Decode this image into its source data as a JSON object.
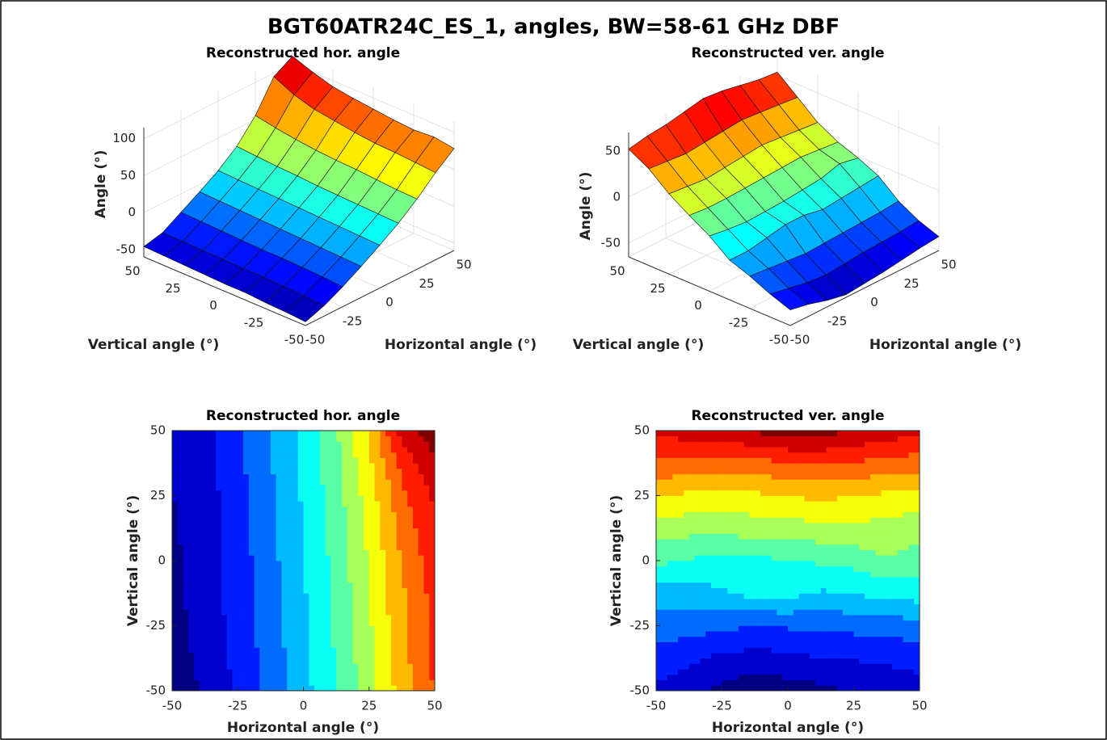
{
  "title": "BGT60ATR24C_ES_1, angles, BW=58-61 GHz DBF",
  "chart_data": [
    {
      "type": "surface",
      "title": "Reconstructed hor. angle",
      "x_label": "Horizontal angle (°)",
      "y_label": "Vertical angle (°)",
      "z_label": "Angle (°)",
      "x": [
        -50,
        -37.5,
        -25,
        -12.5,
        0,
        12.5,
        25,
        37.5,
        50
      ],
      "y": [
        -50,
        -37.5,
        -25,
        -12.5,
        0,
        12.5,
        25,
        37.5,
        50
      ],
      "z": [
        [
          -55,
          -46,
          -33,
          -18,
          -2,
          15,
          35,
          58,
          78
        ],
        [
          -53,
          -44,
          -31,
          -17,
          -1,
          16,
          36,
          60,
          82
        ],
        [
          -52,
          -43,
          -30,
          -16,
          0,
          17,
          38,
          62,
          80
        ],
        [
          -50,
          -42,
          -29,
          -15,
          1,
          18,
          40,
          63,
          82
        ],
        [
          -50,
          -42,
          -29,
          -14,
          2,
          19,
          41,
          66,
          85
        ],
        [
          -49,
          -41,
          -28,
          -13,
          3,
          21,
          43,
          70,
          88
        ],
        [
          -48,
          -41,
          -27,
          -12,
          4,
          22,
          46,
          74,
          92
        ],
        [
          -47,
          -40,
          -26,
          -11,
          5,
          24,
          50,
          82,
          100
        ],
        [
          -46,
          -40,
          -25,
          -10,
          6,
          26,
          55,
          95,
          110
        ]
      ],
      "xlim": [
        -50,
        50
      ],
      "ylim": [
        -50,
        50
      ],
      "zlim": [
        -60,
        115
      ],
      "xticks": [
        -50,
        -25,
        0,
        25,
        50
      ],
      "yticks": [
        -50,
        -25,
        0,
        25,
        50
      ],
      "zticks": [
        -50,
        0,
        50,
        100
      ],
      "colormap": "jet",
      "grid": true
    },
    {
      "type": "surface",
      "title": "Reconstructed ver. angle",
      "x_label": "Horizontal angle (°)",
      "y_label": "Vertical angle (°)",
      "z_label": "Angle (°)",
      "x": [
        -50,
        -37.5,
        -25,
        -12.5,
        0,
        12.5,
        25,
        37.5,
        50
      ],
      "y": [
        -50,
        -37.5,
        -25,
        -12.5,
        0,
        12.5,
        25,
        37.5,
        50
      ],
      "z": [
        [
          -48,
          -52,
          -58,
          -62,
          -60,
          -58,
          -55,
          -52,
          -50
        ],
        [
          -40,
          -44,
          -48,
          -50,
          -48,
          -46,
          -45,
          -44,
          -42
        ],
        [
          -30,
          -32,
          -34,
          -36,
          -35,
          -34,
          -33,
          -32,
          -30
        ],
        [
          -22,
          -22,
          -18,
          -14,
          -14,
          -18,
          -16,
          -14,
          -12
        ],
        [
          -5,
          -8,
          -10,
          -9,
          -8,
          -6,
          -4,
          2,
          -2
        ],
        [
          8,
          6,
          6,
          7,
          8,
          9,
          10,
          8,
          6
        ],
        [
          22,
          20,
          18,
          20,
          22,
          24,
          22,
          20,
          18
        ],
        [
          40,
          38,
          36,
          38,
          40,
          42,
          40,
          38,
          36
        ],
        [
          52,
          56,
          58,
          62,
          66,
          64,
          60,
          56,
          54
        ]
      ],
      "xlim": [
        -50,
        50
      ],
      "ylim": [
        -50,
        50
      ],
      "zlim": [
        -65,
        70
      ],
      "xticks": [
        -50,
        -25,
        0,
        25,
        50
      ],
      "yticks": [
        -50,
        -25,
        0,
        25,
        50
      ],
      "zticks": [
        -50,
        0,
        50
      ],
      "colormap": "jet",
      "grid": true
    },
    {
      "type": "contour",
      "title": "Reconstructed hor. angle",
      "x_label": "Horizontal angle (°)",
      "y_label": "Vertical angle (°)",
      "x": [
        -50,
        -37.5,
        -25,
        -12.5,
        0,
        12.5,
        25,
        37.5,
        50
      ],
      "y": [
        -50,
        -37.5,
        -25,
        -12.5,
        0,
        12.5,
        25,
        37.5,
        50
      ],
      "z": [
        [
          -55,
          -46,
          -33,
          -18,
          -2,
          15,
          35,
          58,
          78
        ],
        [
          -53,
          -44,
          -31,
          -17,
          -1,
          16,
          36,
          60,
          82
        ],
        [
          -52,
          -43,
          -30,
          -16,
          0,
          17,
          38,
          62,
          80
        ],
        [
          -50,
          -42,
          -29,
          -15,
          1,
          18,
          40,
          63,
          82
        ],
        [
          -50,
          -42,
          -29,
          -14,
          2,
          19,
          41,
          66,
          85
        ],
        [
          -49,
          -41,
          -28,
          -13,
          3,
          21,
          43,
          70,
          88
        ],
        [
          -48,
          -41,
          -27,
          -12,
          4,
          22,
          46,
          74,
          92
        ],
        [
          -47,
          -40,
          -26,
          -11,
          5,
          24,
          50,
          82,
          100
        ],
        [
          -46,
          -40,
          -25,
          -10,
          6,
          26,
          55,
          95,
          110
        ]
      ],
      "xlim": [
        -50,
        50
      ],
      "ylim": [
        -50,
        50
      ],
      "zlim": [
        -60,
        115
      ],
      "xticks": [
        -50,
        -25,
        0,
        25,
        50
      ],
      "yticks": [
        -50,
        -25,
        0,
        25,
        50
      ],
      "colormap": "jet"
    },
    {
      "type": "contour",
      "title": "Reconstructed ver. angle",
      "x_label": "Horizontal angle (°)",
      "y_label": "Vertical angle (°)",
      "x": [
        -50,
        -37.5,
        -25,
        -12.5,
        0,
        12.5,
        25,
        37.5,
        50
      ],
      "y": [
        -50,
        -37.5,
        -25,
        -12.5,
        0,
        12.5,
        25,
        37.5,
        50
      ],
      "z": [
        [
          -48,
          -52,
          -58,
          -62,
          -60,
          -58,
          -55,
          -52,
          -50
        ],
        [
          -40,
          -44,
          -48,
          -50,
          -48,
          -46,
          -45,
          -44,
          -42
        ],
        [
          -30,
          -32,
          -34,
          -36,
          -35,
          -34,
          -33,
          -32,
          -30
        ],
        [
          -22,
          -22,
          -18,
          -14,
          -14,
          -18,
          -16,
          -14,
          -12
        ],
        [
          -5,
          -8,
          -10,
          -9,
          -8,
          -6,
          -4,
          2,
          -2
        ],
        [
          8,
          6,
          6,
          7,
          8,
          9,
          10,
          8,
          6
        ],
        [
          22,
          20,
          18,
          20,
          22,
          24,
          22,
          20,
          18
        ],
        [
          40,
          38,
          36,
          38,
          40,
          42,
          40,
          38,
          36
        ],
        [
          52,
          56,
          58,
          62,
          66,
          64,
          60,
          56,
          54
        ]
      ],
      "xlim": [
        -50,
        50
      ],
      "ylim": [
        -50,
        50
      ],
      "zlim": [
        -65,
        70
      ],
      "xticks": [
        -50,
        -25,
        0,
        25,
        50
      ],
      "yticks": [
        -50,
        -25,
        0,
        25,
        50
      ],
      "colormap": "jet"
    }
  ]
}
